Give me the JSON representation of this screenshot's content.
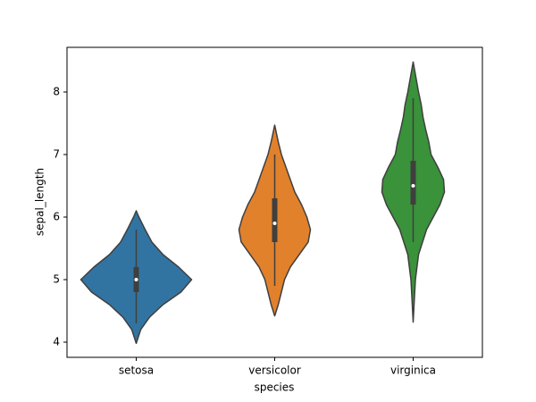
{
  "chart_data": {
    "type": "violin",
    "xlabel": "species",
    "ylabel": "sepal_length",
    "categories": [
      "setosa",
      "versicolor",
      "virginica"
    ],
    "ylim": [
      3.757,
      8.714
    ],
    "yticks": [
      4,
      5,
      6,
      7,
      8
    ],
    "edge_color": "#3f3f3f",
    "violins": [
      {
        "color": "#3274a1",
        "violin_y": [
          3.98,
          4.2,
          4.4,
          4.6,
          4.8,
          5.0,
          5.2,
          5.4,
          5.6,
          5.8,
          6.0,
          6.1
        ],
        "density": [
          0,
          0.1,
          0.3,
          0.6,
          1.0,
          1.24,
          0.95,
          0.6,
          0.35,
          0.2,
          0.06,
          0
        ],
        "whisker_low": 4.3,
        "q1": 4.8,
        "median": 5.0,
        "q3": 5.2,
        "whisker_high": 5.8
      },
      {
        "color": "#e1812c",
        "violin_y": [
          4.42,
          4.6,
          4.8,
          5.0,
          5.2,
          5.4,
          5.6,
          5.8,
          6.0,
          6.2,
          6.4,
          6.6,
          6.8,
          7.0,
          7.2,
          7.47
        ],
        "density": [
          0,
          0.08,
          0.15,
          0.22,
          0.35,
          0.55,
          0.75,
          0.8,
          0.72,
          0.6,
          0.45,
          0.35,
          0.25,
          0.15,
          0.08,
          0
        ],
        "whisker_low": 4.9,
        "q1": 5.6,
        "median": 5.9,
        "q3": 6.3,
        "whisker_high": 7.0
      },
      {
        "color": "#3a923a",
        "violin_y": [
          4.32,
          4.6,
          5.0,
          5.4,
          5.8,
          6.2,
          6.4,
          6.6,
          6.8,
          7.0,
          7.2,
          7.4,
          7.6,
          7.8,
          8.0,
          8.2,
          8.48
        ],
        "density": [
          0,
          0.02,
          0.05,
          0.12,
          0.3,
          0.6,
          0.7,
          0.68,
          0.55,
          0.4,
          0.35,
          0.28,
          0.22,
          0.18,
          0.12,
          0.07,
          0
        ],
        "whisker_low": 5.6,
        "q1": 6.2,
        "median": 6.5,
        "q3": 6.9,
        "whisker_high": 7.9
      }
    ]
  }
}
